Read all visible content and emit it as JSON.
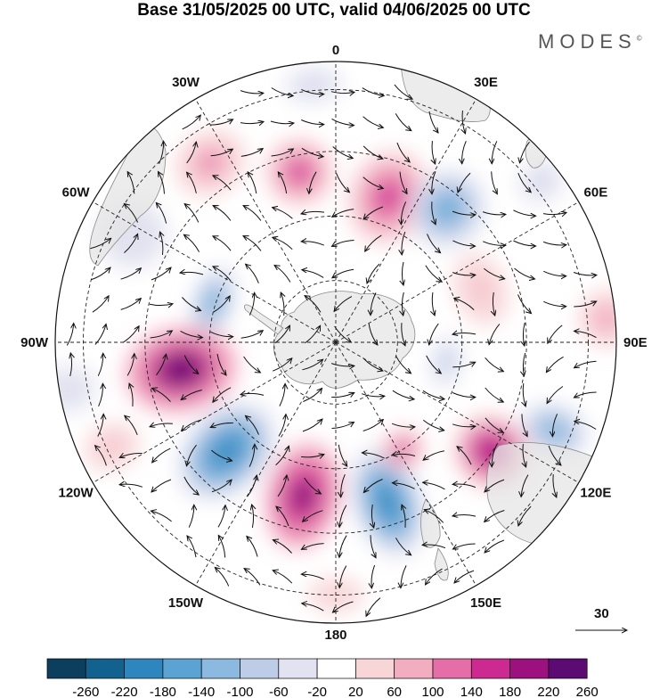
{
  "title": "Base 31/05/2025 00 UTC, valid 04/06/2025 00 UTC",
  "brand": "MODES",
  "brand_mark": "©",
  "map": {
    "projection": "south-polar-stereographic",
    "meridian_labels": [
      {
        "text": "0",
        "lon": 0
      },
      {
        "text": "30E",
        "lon": 30
      },
      {
        "text": "60E",
        "lon": 60
      },
      {
        "text": "90E",
        "lon": 90
      },
      {
        "text": "120E",
        "lon": 120
      },
      {
        "text": "150E",
        "lon": 150
      },
      {
        "text": "180",
        "lon": 180
      },
      {
        "text": "150W",
        "lon": -150
      },
      {
        "text": "120W",
        "lon": -120
      },
      {
        "text": "90W",
        "lon": -90
      },
      {
        "text": "60W",
        "lon": -60
      },
      {
        "text": "30W",
        "lon": -30
      }
    ],
    "vector_reference_label": "30",
    "colors": {
      "land": "#e6e6e6",
      "coast": "#8a8a8a",
      "grid": "#222222",
      "arrow": "#111111"
    }
  },
  "colorbar": {
    "ticks": [
      "-260",
      "-220",
      "-180",
      "-140",
      "-100",
      "-60",
      "-20",
      "20",
      "60",
      "100",
      "140",
      "180",
      "220",
      "260"
    ],
    "colors": [
      "#0c3f5e",
      "#12628f",
      "#2e86be",
      "#5aa3d3",
      "#8bb9df",
      "#bdcde8",
      "#e2e2f0",
      "#ffffff",
      "#f8d6d8",
      "#f3adc1",
      "#e56ea9",
      "#cc2a91",
      "#9c117f",
      "#5c0b72"
    ]
  },
  "anomalies": [
    {
      "lon": -12,
      "r": 0.62,
      "w": 0.12,
      "h": 0.12,
      "v": 160
    },
    {
      "lon": 20,
      "r": 0.55,
      "w": 0.14,
      "h": 0.17,
      "v": 180
    },
    {
      "lon": 40,
      "r": 0.62,
      "w": 0.13,
      "h": 0.14,
      "v": -180
    },
    {
      "lon": -35,
      "r": 0.78,
      "w": 0.13,
      "h": 0.11,
      "v": 110
    },
    {
      "lon": -62,
      "r": 0.82,
      "w": 0.12,
      "h": 0.12,
      "v": -60
    },
    {
      "lon": -5,
      "r": 0.92,
      "w": 0.1,
      "h": 0.06,
      "v": -70
    },
    {
      "lon": -72,
      "r": 0.46,
      "w": 0.13,
      "h": 0.07,
      "v": -150
    },
    {
      "lon": -100,
      "r": 0.56,
      "w": 0.15,
      "h": 0.2,
      "v": 250
    },
    {
      "lon": -135,
      "r": 0.55,
      "w": 0.14,
      "h": 0.2,
      "v": -200
    },
    {
      "lon": -168,
      "r": 0.56,
      "w": 0.13,
      "h": 0.19,
      "v": 240
    },
    {
      "lon": 162,
      "r": 0.6,
      "w": 0.12,
      "h": 0.2,
      "v": -200
    },
    {
      "lon": 148,
      "r": 0.45,
      "w": 0.08,
      "h": 0.07,
      "v": 150
    },
    {
      "lon": 125,
      "r": 0.68,
      "w": 0.13,
      "h": 0.14,
      "v": 200
    },
    {
      "lon": 112,
      "r": 0.84,
      "w": 0.09,
      "h": 0.12,
      "v": -140
    },
    {
      "lon": 70,
      "r": 0.55,
      "w": 0.13,
      "h": 0.09,
      "v": 80
    },
    {
      "lon": 85,
      "r": 0.97,
      "w": 0.1,
      "h": 0.1,
      "v": 90
    },
    {
      "lon": 100,
      "r": 0.4,
      "w": 0.09,
      "h": 0.05,
      "v": -90
    },
    {
      "lon": 52,
      "r": 0.93,
      "w": 0.07,
      "h": 0.08,
      "v": -70
    },
    {
      "lon": -115,
      "r": 0.88,
      "w": 0.08,
      "h": 0.1,
      "v": 70
    },
    {
      "lon": -100,
      "r": 0.97,
      "w": 0.08,
      "h": 0.1,
      "v": -40
    },
    {
      "lon": 180,
      "r": 0.9,
      "w": 0.1,
      "h": 0.06,
      "v": 60
    }
  ]
}
